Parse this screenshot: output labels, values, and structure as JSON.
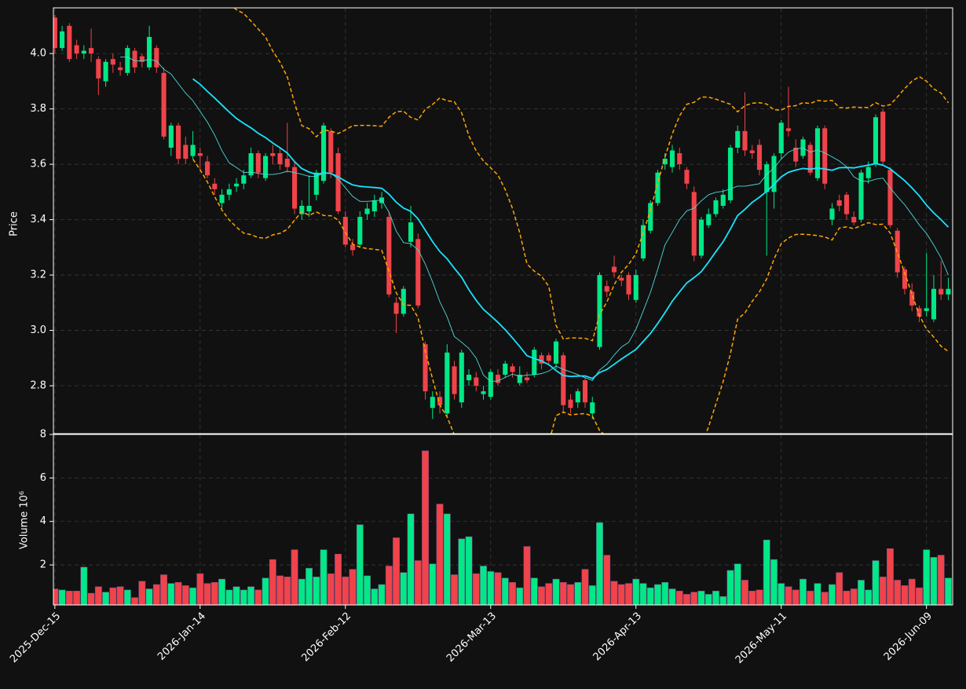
{
  "chart_data": {
    "type": "candlestick",
    "ylabel": "Price",
    "xlim": [
      -0.2,
      123.6
    ],
    "xticks": [
      {
        "value": 0,
        "label": "2025-Dec-15"
      },
      {
        "value": 20,
        "label": "2026-Jan-14"
      },
      {
        "value": 40,
        "label": "2026-Feb-12"
      },
      {
        "value": 60,
        "label": "2026-Mar-13"
      },
      {
        "value": 80,
        "label": "2026-Apr-13"
      },
      {
        "value": 100,
        "label": "2026-May-11"
      },
      {
        "value": 120,
        "label": "2026-Jun-09"
      }
    ],
    "ylim": [
      2.627,
      4.165
    ],
    "yticks": [
      2.8,
      {
        "value": 3,
        "label": "3.0"
      },
      3.2,
      3.4,
      3.6,
      3.8,
      {
        "value": 4,
        "label": "4.0"
      }
    ],
    "grid": true,
    "up_color": "#00e887",
    "down_color": "#f0434a",
    "open": [
      4.13,
      4.02,
      4.1,
      4.03,
      4.0,
      4.02,
      3.98,
      3.9,
      3.98,
      3.95,
      3.93,
      4.01,
      3.99,
      3.95,
      4.02,
      3.93,
      3.66,
      3.74,
      3.67,
      3.63,
      3.64,
      3.61,
      3.53,
      3.46,
      3.49,
      3.52,
      3.53,
      3.56,
      3.64,
      3.55,
      3.64,
      3.64,
      3.62,
      3.59,
      3.42,
      3.43,
      3.49,
      3.54,
      3.72,
      3.64,
      3.41,
      3.31,
      3.31,
      3.42,
      3.43,
      3.46,
      3.41,
      3.1,
      3.06,
      3.32,
      3.33,
      2.95,
      2.72,
      2.76,
      2.7,
      2.87,
      2.74,
      2.82,
      2.83,
      2.77,
      2.76,
      2.84,
      2.84,
      2.87,
      2.81,
      2.83,
      2.84,
      2.91,
      2.91,
      2.88,
      2.91,
      2.75,
      2.74,
      2.82,
      2.7,
      2.94,
      3.16,
      3.23,
      3.19,
      3.2,
      3.11,
      3.26,
      3.36,
      3.46,
      3.6,
      3.59,
      3.64,
      3.58,
      3.5,
      3.27,
      3.38,
      3.42,
      3.45,
      3.47,
      3.66,
      3.72,
      3.65,
      3.67,
      3.5,
      3.5,
      3.64,
      3.73,
      3.66,
      3.63,
      3.67,
      3.55,
      3.73,
      3.4,
      3.47,
      3.49,
      3.41,
      3.4,
      3.55,
      3.6,
      3.79,
      3.58,
      3.36,
      3.22,
      3.14,
      3.08,
      3.07,
      3.04,
      3.15,
      3.13
    ],
    "high": [
      4.14,
      4.1,
      4.11,
      4.05,
      4.03,
      4.09,
      3.99,
      3.98,
      4.0,
      3.97,
      4.03,
      4.02,
      4.0,
      4.1,
      4.03,
      3.95,
      3.75,
      3.75,
      3.7,
      3.72,
      3.66,
      3.63,
      3.55,
      3.51,
      3.53,
      3.55,
      3.58,
      3.66,
      3.65,
      3.64,
      3.67,
      3.66,
      3.75,
      3.61,
      3.47,
      3.56,
      3.58,
      3.75,
      3.73,
      3.66,
      3.43,
      3.33,
      3.43,
      3.46,
      3.49,
      3.5,
      3.43,
      3.12,
      3.16,
      3.45,
      3.35,
      2.96,
      2.78,
      2.78,
      2.95,
      2.89,
      2.93,
      2.86,
      2.85,
      2.8,
      2.86,
      2.86,
      2.89,
      2.88,
      2.87,
      2.85,
      2.94,
      2.92,
      2.92,
      2.97,
      2.92,
      2.77,
      2.79,
      2.83,
      2.76,
      3.21,
      3.18,
      3.27,
      3.2,
      3.21,
      3.22,
      3.4,
      3.47,
      3.58,
      3.64,
      3.67,
      3.66,
      3.59,
      3.52,
      3.41,
      3.44,
      3.48,
      3.51,
      3.67,
      3.74,
      3.86,
      3.67,
      3.69,
      3.61,
      3.64,
      3.76,
      3.88,
      3.69,
      3.7,
      3.68,
      3.74,
      3.74,
      3.46,
      3.49,
      3.5,
      3.43,
      3.58,
      3.61,
      3.78,
      3.8,
      3.59,
      3.37,
      3.23,
      3.17,
      3.09,
      3.28,
      3.2,
      3.25,
      3.19
    ],
    "low": [
      4.0,
      4.01,
      3.97,
      3.98,
      3.98,
      3.97,
      3.85,
      3.88,
      3.93,
      3.92,
      3.92,
      3.93,
      3.95,
      3.94,
      3.93,
      3.69,
      3.63,
      3.6,
      3.6,
      3.62,
      3.58,
      3.55,
      3.49,
      3.44,
      3.47,
      3.5,
      3.51,
      3.55,
      3.55,
      3.54,
      3.6,
      3.58,
      3.57,
      3.42,
      3.4,
      3.41,
      3.47,
      3.53,
      3.55,
      3.42,
      3.3,
      3.27,
      3.3,
      3.4,
      3.41,
      3.44,
      3.12,
      2.99,
      3.05,
      3.3,
      3.08,
      2.75,
      2.68,
      2.7,
      2.69,
      2.75,
      2.72,
      2.8,
      2.78,
      2.75,
      2.75,
      2.8,
      2.83,
      2.83,
      2.8,
      2.81,
      2.83,
      2.86,
      2.88,
      2.86,
      2.7,
      2.7,
      2.72,
      2.72,
      2.68,
      2.93,
      3.12,
      3.19,
      3.16,
      3.11,
      3.1,
      3.25,
      3.35,
      3.45,
      3.58,
      3.57,
      3.58,
      3.51,
      3.25,
      3.26,
      3.37,
      3.41,
      3.44,
      3.46,
      3.64,
      3.63,
      3.62,
      3.56,
      3.27,
      3.44,
      3.62,
      3.7,
      3.59,
      3.62,
      3.56,
      3.54,
      3.51,
      3.38,
      3.43,
      3.4,
      3.38,
      3.39,
      3.53,
      3.59,
      3.6,
      3.37,
      3.19,
      3.13,
      3.07,
      3.03,
      3.05,
      3.03,
      3.11,
      3.11
    ],
    "close": [
      4.02,
      4.08,
      3.98,
      4.0,
      4.01,
      4.0,
      3.91,
      3.97,
      3.96,
      3.94,
      4.02,
      3.95,
      3.97,
      4.06,
      3.95,
      3.7,
      3.74,
      3.62,
      3.62,
      3.67,
      3.63,
      3.56,
      3.51,
      3.49,
      3.51,
      3.53,
      3.56,
      3.64,
      3.57,
      3.63,
      3.63,
      3.6,
      3.59,
      3.44,
      3.45,
      3.45,
      3.57,
      3.74,
      3.57,
      3.43,
      3.31,
      3.29,
      3.41,
      3.44,
      3.47,
      3.48,
      3.13,
      3.06,
      3.15,
      3.39,
      3.09,
      2.78,
      2.76,
      2.73,
      2.92,
      2.77,
      2.92,
      2.84,
      2.8,
      2.78,
      2.85,
      2.81,
      2.88,
      2.85,
      2.84,
      2.82,
      2.93,
      2.88,
      2.89,
      2.96,
      2.73,
      2.72,
      2.78,
      2.74,
      2.74,
      3.2,
      3.14,
      3.21,
      3.18,
      3.13,
      3.2,
      3.38,
      3.46,
      3.57,
      3.62,
      3.65,
      3.6,
      3.53,
      3.27,
      3.4,
      3.42,
      3.47,
      3.49,
      3.66,
      3.72,
      3.65,
      3.64,
      3.58,
      3.6,
      3.63,
      3.75,
      3.72,
      3.61,
      3.69,
      3.57,
      3.73,
      3.53,
      3.44,
      3.45,
      3.42,
      3.39,
      3.57,
      3.59,
      3.77,
      3.61,
      3.38,
      3.21,
      3.15,
      3.09,
      3.05,
      3.08,
      3.15,
      3.13,
      3.15
    ],
    "mav": [
      10,
      20
    ],
    "mav_colors": [
      "#4fd8d8",
      "#18e4ff"
    ],
    "bollinger": {
      "period": 20,
      "std": 2,
      "color": "#ffa500"
    },
    "volume": {
      "label": "Volume  10⁶",
      "ylim": [
        0.16,
        8
      ],
      "yticks": [
        2,
        4,
        6,
        8
      ],
      "values": [
        0.9,
        0.85,
        0.8,
        0.8,
        1.9,
        0.7,
        1.0,
        0.75,
        0.95,
        1.0,
        0.85,
        0.5,
        1.25,
        0.9,
        1.1,
        1.55,
        1.15,
        1.2,
        1.05,
        0.95,
        1.6,
        1.15,
        1.2,
        1.35,
        0.85,
        1.0,
        0.85,
        1.0,
        0.85,
        1.4,
        2.25,
        1.5,
        1.45,
        2.7,
        1.35,
        1.85,
        1.45,
        2.7,
        1.6,
        2.5,
        1.45,
        1.8,
        3.85,
        1.5,
        0.9,
        1.1,
        1.95,
        3.25,
        1.65,
        4.35,
        2.2,
        7.25,
        2.05,
        4.8,
        4.35,
        1.55,
        3.2,
        3.3,
        1.6,
        1.95,
        1.7,
        1.65,
        1.4,
        1.2,
        0.95,
        2.85,
        1.4,
        1.0,
        1.15,
        1.35,
        1.2,
        1.1,
        1.2,
        1.8,
        1.05,
        3.95,
        2.45,
        1.25,
        1.1,
        1.15,
        1.35,
        1.15,
        0.95,
        1.1,
        1.2,
        0.9,
        0.8,
        0.65,
        0.75,
        0.8,
        0.65,
        0.8,
        0.55,
        1.75,
        2.05,
        1.3,
        0.8,
        0.85,
        3.15,
        2.25,
        1.15,
        1.0,
        0.85,
        1.35,
        0.8,
        1.15,
        0.75,
        1.1,
        1.65,
        0.8,
        0.9,
        1.3,
        0.85,
        2.2,
        1.45,
        2.75,
        1.3,
        1.05,
        1.35,
        0.95,
        2.7,
        2.35,
        2.45,
        1.4
      ]
    }
  }
}
